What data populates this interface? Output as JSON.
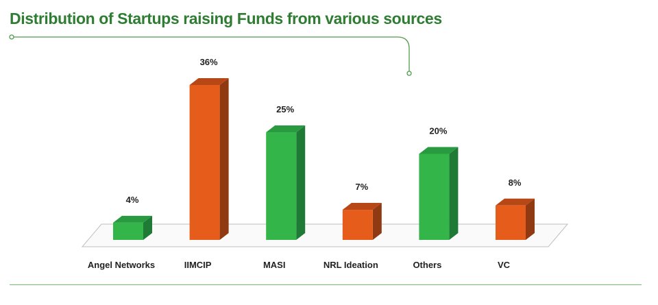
{
  "chart_data": {
    "type": "bar",
    "title": "Distribution of Startups raising Funds from various sources",
    "categories": [
      "Angel Networks",
      "IIMCIP",
      "MASI",
      "NRL Ideation",
      "Others",
      "VC"
    ],
    "values": [
      4,
      36,
      25,
      7,
      20,
      8
    ],
    "value_labels": [
      "4%",
      "36%",
      "25%",
      "7%",
      "20%",
      "8%"
    ],
    "unit": "%",
    "xlabel": "",
    "ylabel": "",
    "ylim": [
      0,
      36
    ],
    "grid": false,
    "legend": "none",
    "bar_colors": [
      "#33b54a",
      "#e65c1a",
      "#33b54a",
      "#e65c1a",
      "#33b54a",
      "#e65c1a"
    ]
  },
  "colors": {
    "title": "#2e7d32",
    "green_front": "#33b54a",
    "green_side": "#1e7a35",
    "green_top": "#2a9a40",
    "orange_front": "#e65c1a",
    "orange_side": "#8f3a12",
    "orange_top": "#b84716",
    "floor_stroke": "#bfbfbf",
    "accent_line": "#4d9b4d"
  }
}
